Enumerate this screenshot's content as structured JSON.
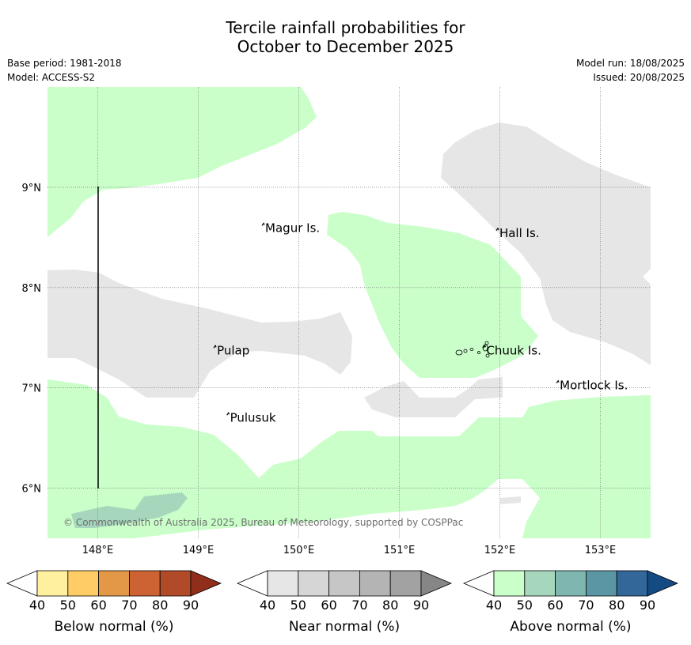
{
  "title": {
    "line1": "Tercile rainfall probabilities for",
    "line2": "October to December 2025"
  },
  "meta": {
    "base_period": "Base period: 1981-2018",
    "model": "Model: ACCESS-S2",
    "model_run": "Model run: 18/08/2025",
    "issued": "Issued: 20/08/2025"
  },
  "map": {
    "lon_range": [
      147.5,
      153.5
    ],
    "lat_range": [
      5.5,
      10.0
    ],
    "x_ticks": [
      {
        "lon": 148,
        "label": "148°E"
      },
      {
        "lon": 149,
        "label": "149°E"
      },
      {
        "lon": 150,
        "label": "150°E"
      },
      {
        "lon": 151,
        "label": "151°E"
      },
      {
        "lon": 152,
        "label": "152°E"
      },
      {
        "lon": 153,
        "label": "153°E"
      }
    ],
    "y_ticks": [
      {
        "lat": 6,
        "label": "6°N"
      },
      {
        "lat": 7,
        "label": "7°N"
      },
      {
        "lat": 8,
        "label": "8°N"
      },
      {
        "lat": 9,
        "label": "9°N"
      }
    ],
    "grid": "dotted",
    "colors": {
      "near_normal_40_50": "#e6e6e6",
      "above_normal_40_50": "#caffca",
      "above_normal_50_60": "#a6d7bd",
      "boundary_line": "#000000"
    },
    "places": [
      {
        "name": "Magur Is.",
        "lon": 149.65,
        "lat": 8.57
      },
      {
        "name": "Hall Is.",
        "lon": 151.98,
        "lat": 8.52
      },
      {
        "name": "Pulap",
        "lon": 149.17,
        "lat": 7.35
      },
      {
        "name": "Chuuk Is.",
        "lon": 151.85,
        "lat": 7.35
      },
      {
        "name": "Pulusuk",
        "lon": 149.3,
        "lat": 6.68
      },
      {
        "name": "Mortlock Is.",
        "lon": 152.58,
        "lat": 7.0
      }
    ],
    "copyright": "© Commonwealth of Australia 2025, Bureau of Meteorology, supported by COSPPac"
  },
  "legends": [
    {
      "title": "Below normal (%)",
      "ticks": [
        "40",
        "50",
        "60",
        "70",
        "80",
        "90"
      ],
      "colors": [
        "#ffffff",
        "#fff0a0",
        "#ffcc66",
        "#e39848",
        "#cd6232",
        "#b04a28",
        "#8f2e1a"
      ]
    },
    {
      "title": "Near normal (%)",
      "ticks": [
        "40",
        "50",
        "60",
        "70",
        "80",
        "90"
      ],
      "colors": [
        "#ffffff",
        "#e6e6e6",
        "#d6d6d6",
        "#c6c6c6",
        "#b4b4b4",
        "#a2a2a2",
        "#868686"
      ]
    },
    {
      "title": "Above normal (%)",
      "ticks": [
        "40",
        "50",
        "60",
        "70",
        "80",
        "90"
      ],
      "colors": [
        "#ffffff",
        "#caffca",
        "#a6d7bd",
        "#7fb6b0",
        "#5b96a4",
        "#336699",
        "#144b82"
      ]
    }
  ]
}
